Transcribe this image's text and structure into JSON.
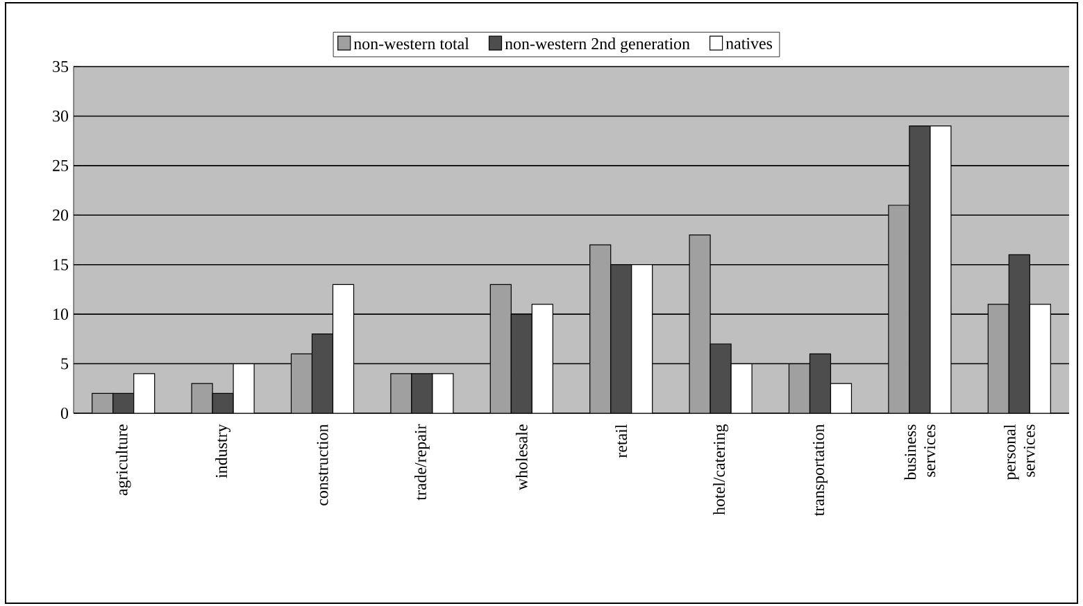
{
  "chart_data": {
    "type": "bar",
    "categories": [
      "agriculture",
      "industry",
      "construction",
      "trade/repair",
      "wholesale",
      "retail",
      "hotel/catering",
      "transportation",
      "business services",
      "personal services"
    ],
    "series": [
      {
        "name": "non-western total",
        "color": "#a0a0a0",
        "values": [
          2,
          3,
          6,
          4,
          13,
          17,
          18,
          5,
          21,
          11
        ]
      },
      {
        "name": "non-western 2nd generation",
        "color": "#4d4d4d",
        "values": [
          2,
          2,
          8,
          4,
          10,
          15,
          7,
          6,
          29,
          16
        ]
      },
      {
        "name": "natives",
        "color": "#ffffff",
        "values": [
          4,
          5,
          13,
          4,
          11,
          15,
          5,
          3,
          29,
          11
        ]
      }
    ],
    "ylim": [
      0,
      35
    ],
    "yticks": [
      0,
      5,
      10,
      15,
      20,
      25,
      30,
      35
    ],
    "grid": "y",
    "legend": "top"
  }
}
